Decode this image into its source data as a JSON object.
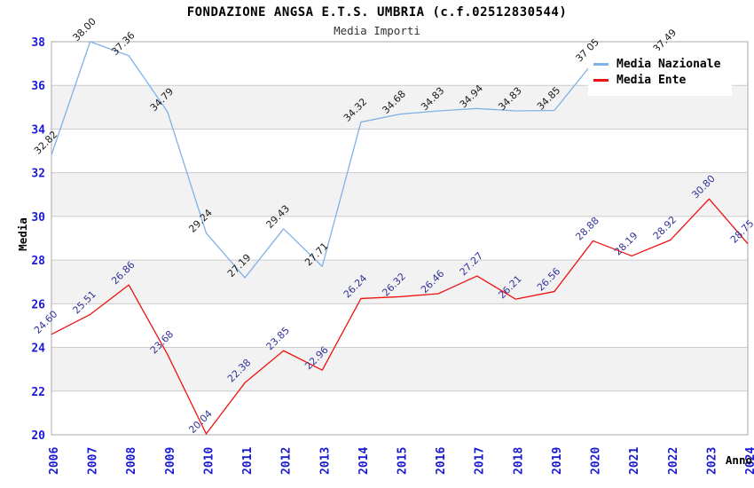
{
  "title": "FONDAZIONE ANGSA E.T.S. UMBRIA (c.f.02512830544)",
  "subtitle": "Media Importi",
  "chart_data": {
    "type": "line",
    "x": [
      "2006",
      "2007",
      "2008",
      "2009",
      "2010",
      "2011",
      "2012",
      "2013",
      "2014",
      "2015",
      "2016",
      "2017",
      "2018",
      "2019",
      "2020",
      "2021",
      "2022",
      "2023",
      "2024"
    ],
    "xlabel": "Anno",
    "ylabel": "Media",
    "ylim": [
      20,
      38
    ],
    "yticks": [
      20,
      22,
      24,
      26,
      28,
      30,
      32,
      34,
      36,
      38
    ],
    "grid": true,
    "band_fill_between_even_gridlines": true,
    "legend_position": "top-right",
    "series": [
      {
        "name": "Media Nazionale",
        "color": "#7fb2e5",
        "label_color": "#1a1a1a",
        "values": [
          32.82,
          38.0,
          37.36,
          34.79,
          29.24,
          27.19,
          29.43,
          27.71,
          34.32,
          34.68,
          34.83,
          34.94,
          34.83,
          34.85,
          37.05,
          null,
          37.49,
          null,
          null
        ]
      },
      {
        "name": "Media Ente",
        "color": "#ee1111",
        "label_color": "#333399",
        "values": [
          24.6,
          25.51,
          26.86,
          23.68,
          20.04,
          22.38,
          23.85,
          22.96,
          26.24,
          26.32,
          26.46,
          27.27,
          26.21,
          26.56,
          28.88,
          28.19,
          28.92,
          30.8,
          28.75
        ]
      }
    ]
  },
  "colors": {
    "tick_label": "#1a1ad2",
    "grid_line": "#cccccc",
    "band_fill": "#f2f2f2",
    "plot_border": "#aaaaaa",
    "axis_title": "#000000",
    "background": "#ffffff"
  }
}
